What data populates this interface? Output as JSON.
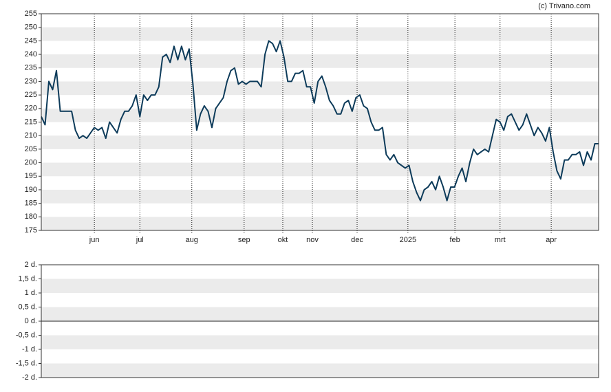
{
  "credit": "(c) Trivano.com",
  "chart_data": [
    {
      "type": "line",
      "color": "#0d3b5a",
      "values": [
        217,
        214,
        230,
        227,
        234,
        219,
        219,
        219,
        219,
        212,
        209,
        210,
        209,
        211,
        213,
        212,
        213,
        209,
        215,
        213,
        211,
        216,
        219,
        219,
        221,
        225,
        217,
        225,
        223,
        225,
        225,
        228,
        239,
        240,
        237,
        243,
        238,
        243,
        238,
        242,
        229,
        212,
        218,
        221,
        219,
        213,
        220,
        222,
        224,
        230,
        234,
        235,
        229,
        230,
        229,
        230,
        230,
        230,
        228,
        240,
        245,
        244,
        241,
        245,
        239,
        230,
        230,
        233,
        233,
        234,
        228,
        228,
        222,
        230,
        232,
        228,
        223,
        221,
        218,
        218,
        222,
        223,
        219,
        224,
        225,
        221,
        220,
        215,
        212,
        212,
        213,
        203,
        201,
        203,
        200,
        199,
        198,
        199,
        193,
        189,
        186,
        190,
        191,
        193,
        190,
        195,
        191,
        186,
        191,
        191,
        195,
        198,
        193,
        200,
        205,
        203,
        204,
        205,
        204,
        210,
        216,
        215,
        212,
        217,
        218,
        215,
        212,
        214,
        218,
        214,
        210,
        213,
        211,
        208,
        213,
        204,
        197,
        194,
        201,
        201,
        203,
        203,
        204,
        199,
        204,
        201,
        207,
        207
      ],
      "xlim": [
        0,
        147
      ],
      "xticks": [
        {
          "value": 14.0,
          "label": "jun"
        },
        {
          "value": 26.0,
          "label": "jul"
        },
        {
          "value": 39.7,
          "label": "aug"
        },
        {
          "value": 53.5,
          "label": "sep"
        },
        {
          "value": 63.7,
          "label": "okt"
        },
        {
          "value": 71.5,
          "label": "nov"
        },
        {
          "value": 83.3,
          "label": "dec"
        },
        {
          "value": 96.7,
          "label": "2025"
        },
        {
          "value": 109.1,
          "label": "feb"
        },
        {
          "value": 121.0,
          "label": "mrt"
        },
        {
          "value": 134.5,
          "label": "apr"
        }
      ],
      "ylim": [
        175,
        255
      ],
      "yticks": [
        175,
        180,
        185,
        190,
        195,
        200,
        205,
        210,
        215,
        220,
        225,
        230,
        235,
        240,
        245,
        250,
        255
      ],
      "grid": true
    },
    {
      "type": "line",
      "ylim": [
        -2,
        2
      ],
      "yticks": [
        {
          "value": -2,
          "label": "-2 d."
        },
        {
          "value": -1.5,
          "label": "-1,5 d."
        },
        {
          "value": -1,
          "label": "-1 d."
        },
        {
          "value": -0.5,
          "label": "-0,5 d."
        },
        {
          "value": 0,
          "label": "0 d."
        },
        {
          "value": 0.5,
          "label": "0,5 d."
        },
        {
          "value": 1,
          "label": "1 d."
        },
        {
          "value": 1.5,
          "label": "1,5 d."
        },
        {
          "value": 2,
          "label": "2 d."
        }
      ],
      "grid": true
    }
  ]
}
